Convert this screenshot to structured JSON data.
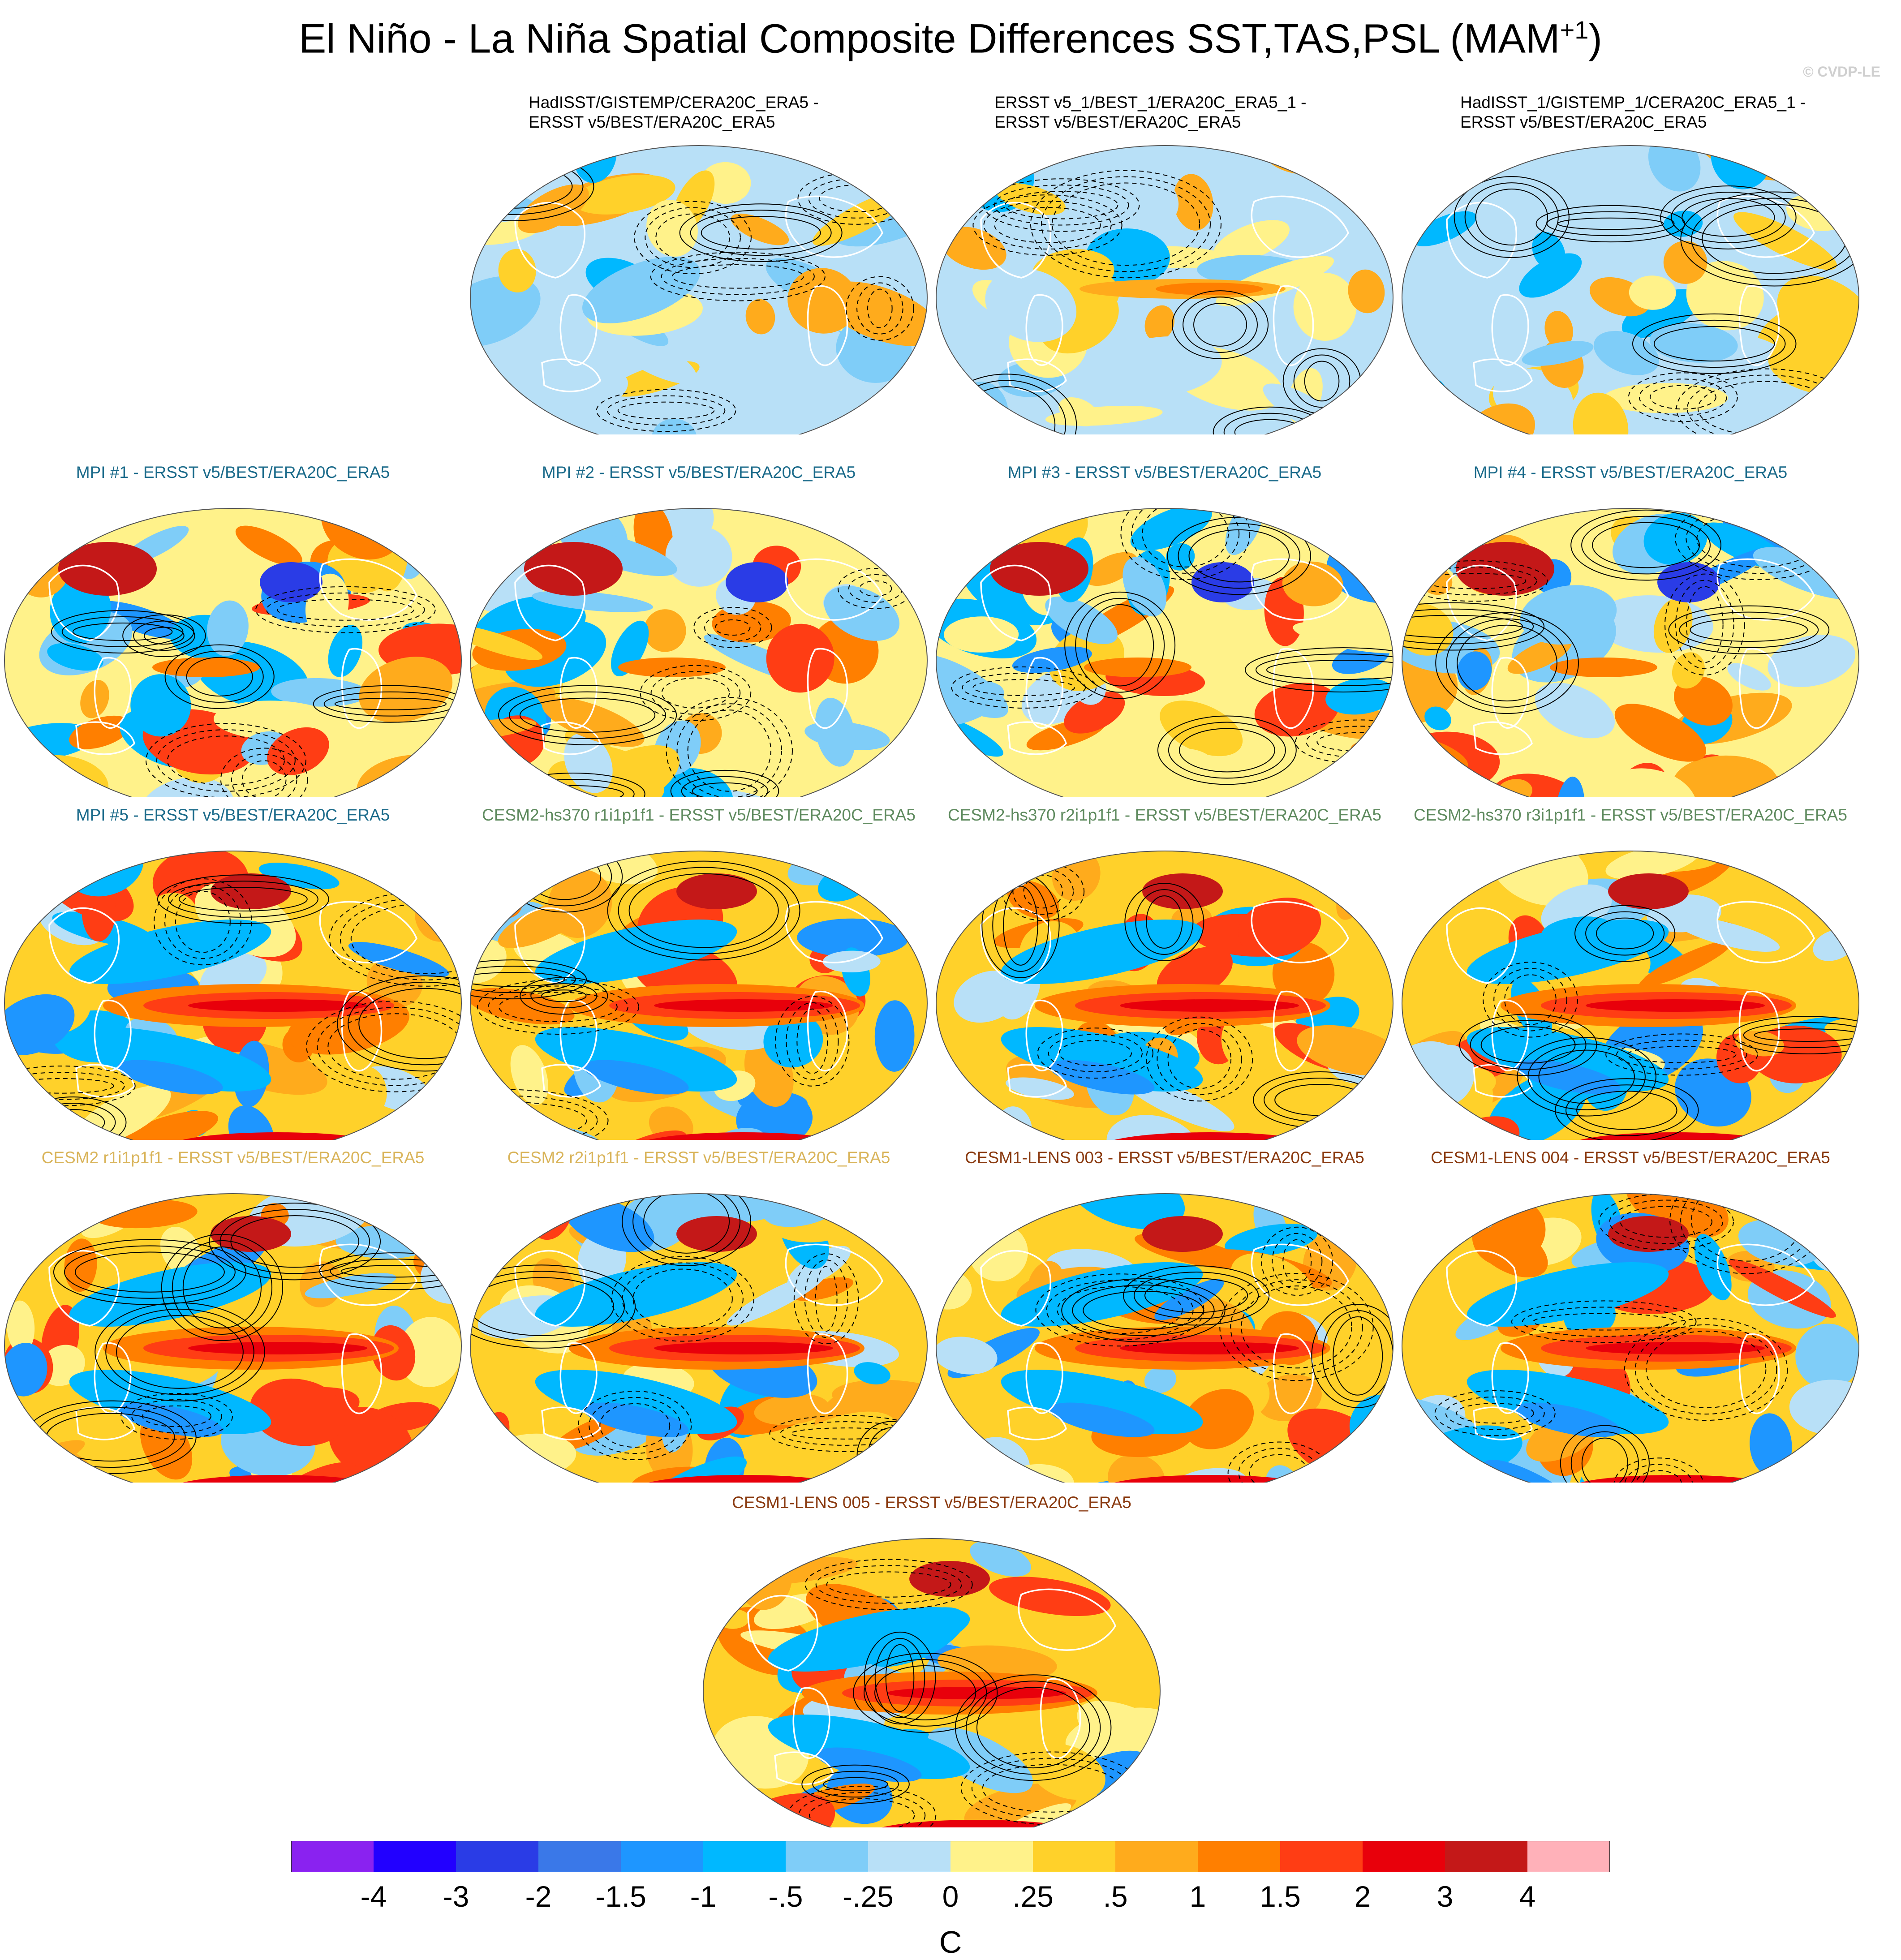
{
  "title": "El Niño - La Niña Spatial Composite Differences SST,TAS,PSL (MAM",
  "title_sup": "+1",
  "title_end": ")",
  "credit": "© CVDP-LE",
  "chart_data": {
    "type": "heatmap",
    "description_units": "C",
    "colorbar": {
      "ticks": [
        "-4",
        "-3",
        "-2",
        "-1.5",
        "-1",
        "-.5",
        "-.25",
        "0",
        ".25",
        ".5",
        "1",
        "1.5",
        "2",
        "3",
        "4"
      ],
      "colors": [
        "#8a22f0",
        "#2200ff",
        "#2a3ce6",
        "#3a78e8",
        "#1e96ff",
        "#00b8ff",
        "#7fcdf8",
        "#b8e0f7",
        "#fff28a",
        "#ffd12a",
        "#ffab1c",
        "#ff7f00",
        "#ff3d14",
        "#e8000b",
        "#c41818",
        "#ffb1b9"
      ],
      "unit": "C"
    },
    "panels": [
      {
        "id": "obs1",
        "label_lines": [
          "HadISST/GISTEMP/CERA20C_ERA5 -",
          "ERSST v5/BEST/ERA20C_ERA5"
        ],
        "label_color": "#000000",
        "style": "obs"
      },
      {
        "id": "obs2",
        "label_lines": [
          "ERSST v5_1/BEST_1/ERA20C_ERA5_1 -",
          "ERSST v5/BEST/ERA20C_ERA5"
        ],
        "label_color": "#000000",
        "style": "obs"
      },
      {
        "id": "obs3",
        "label_lines": [
          "HadISST_1/GISTEMP_1/CERA20C_ERA5_1 -",
          "ERSST v5/BEST/ERA20C_ERA5"
        ],
        "label_color": "#000000",
        "style": "obs"
      },
      {
        "id": "mpi1",
        "label": "MPI #1 - ERSST v5/BEST/ERA20C_ERA5",
        "label_color": "#1a6a8a",
        "style": "mpi"
      },
      {
        "id": "mpi2",
        "label": "MPI #2 - ERSST v5/BEST/ERA20C_ERA5",
        "label_color": "#1a6a8a",
        "style": "mpi"
      },
      {
        "id": "mpi3",
        "label": "MPI #3 - ERSST v5/BEST/ERA20C_ERA5",
        "label_color": "#1a6a8a",
        "style": "mpi"
      },
      {
        "id": "mpi4",
        "label": "MPI #4 - ERSST v5/BEST/ERA20C_ERA5",
        "label_color": "#1a6a8a",
        "style": "mpi"
      },
      {
        "id": "mpi5",
        "label": "MPI #5 - ERSST v5/BEST/ERA20C_ERA5",
        "label_color": "#1a6a8a",
        "style": "nino"
      },
      {
        "id": "hs1",
        "label": "CESM2-hs370 r1i1p1f1 - ERSST v5/BEST/ERA20C_ERA5",
        "label_color": "#5e8a5e",
        "style": "nino"
      },
      {
        "id": "hs2",
        "label": "CESM2-hs370 r2i1p1f1 - ERSST v5/BEST/ERA20C_ERA5",
        "label_color": "#5e8a5e",
        "style": "nino"
      },
      {
        "id": "hs3",
        "label": "CESM2-hs370 r3i1p1f1 - ERSST v5/BEST/ERA20C_ERA5",
        "label_color": "#5e8a5e",
        "style": "nino"
      },
      {
        "id": "c2r1",
        "label": "CESM2 r1i1p1f1 - ERSST v5/BEST/ERA20C_ERA5",
        "label_color": "#d9b45a",
        "style": "nino"
      },
      {
        "id": "c2r2",
        "label": "CESM2 r2i1p1f1 - ERSST v5/BEST/ERA20C_ERA5",
        "label_color": "#d9b45a",
        "style": "nino"
      },
      {
        "id": "l003",
        "label": "CESM1-LENS 003 - ERSST v5/BEST/ERA20C_ERA5",
        "label_color": "#8a3a10",
        "style": "nino"
      },
      {
        "id": "l004",
        "label": "CESM1-LENS 004 - ERSST v5/BEST/ERA20C_ERA5",
        "label_color": "#8a3a10",
        "style": "nino"
      },
      {
        "id": "l005",
        "label": "CESM1-LENS 005 - ERSST v5/BEST/ERA20C_ERA5",
        "label_color": "#8a3a10",
        "style": "nino"
      }
    ]
  }
}
